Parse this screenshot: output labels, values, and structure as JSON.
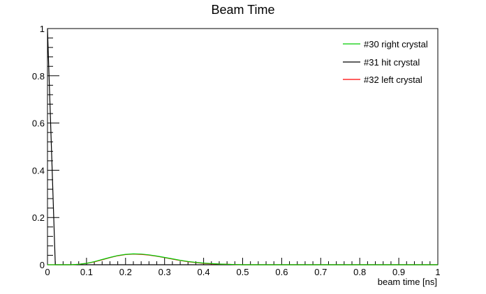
{
  "chart_data": {
    "type": "line",
    "title": "Beam Time",
    "xlabel": "beam time [ns]",
    "ylabel": "",
    "xlim": [
      0,
      1
    ],
    "ylim": [
      0,
      1
    ],
    "x_ticks": [
      "0",
      "0.1",
      "0.2",
      "0.3",
      "0.4",
      "0.5",
      "0.6",
      "0.7",
      "0.8",
      "0.9",
      "1"
    ],
    "y_ticks": [
      "0",
      "0.2",
      "0.4",
      "0.6",
      "0.8",
      "1"
    ],
    "x_tick_values": [
      0,
      0.1,
      0.2,
      0.3,
      0.4,
      0.5,
      0.6,
      0.7,
      0.8,
      0.9,
      1
    ],
    "y_tick_values": [
      0,
      0.2,
      0.4,
      0.6,
      0.8,
      1
    ],
    "grid": false,
    "legend_position": "top-right",
    "x": [
      0.0,
      0.02,
      0.04,
      0.06,
      0.08,
      0.1,
      0.12,
      0.14,
      0.16,
      0.18,
      0.2,
      0.22,
      0.24,
      0.26,
      0.28,
      0.3,
      0.32,
      0.34,
      0.36,
      0.38,
      0.4,
      0.42,
      0.44,
      0.46,
      0.48,
      0.5,
      0.55,
      0.6,
      0.7,
      0.8,
      0.9,
      1.0
    ],
    "series": [
      {
        "name": "#30 right crystal",
        "color": "#00cc00",
        "values": [
          0,
          0,
          0,
          0,
          0.002,
          0.006,
          0.013,
          0.022,
          0.031,
          0.039,
          0.044,
          0.046,
          0.045,
          0.042,
          0.037,
          0.031,
          0.025,
          0.019,
          0.014,
          0.01,
          0.007,
          0.005,
          0.003,
          0.002,
          0.001,
          0,
          0,
          0,
          0,
          0,
          0,
          0
        ]
      },
      {
        "name": "#31 hit crystal",
        "color": "#000000",
        "values": [
          1.0,
          0,
          0,
          0,
          0,
          0,
          0,
          0,
          0,
          0,
          0,
          0,
          0,
          0,
          0,
          0,
          0,
          0,
          0,
          0,
          0,
          0,
          0,
          0,
          0,
          0,
          0,
          0,
          0,
          0,
          0,
          0
        ]
      },
      {
        "name": "#32 left crystal",
        "color": "#ff0000",
        "values": [
          0,
          0,
          0,
          0,
          0.002,
          0.006,
          0.012,
          0.021,
          0.03,
          0.038,
          0.043,
          0.045,
          0.044,
          0.041,
          0.036,
          0.03,
          0.024,
          0.018,
          0.013,
          0.009,
          0.006,
          0.004,
          0.003,
          0.002,
          0.001,
          0,
          0,
          0,
          0,
          0,
          0,
          0
        ]
      }
    ]
  }
}
